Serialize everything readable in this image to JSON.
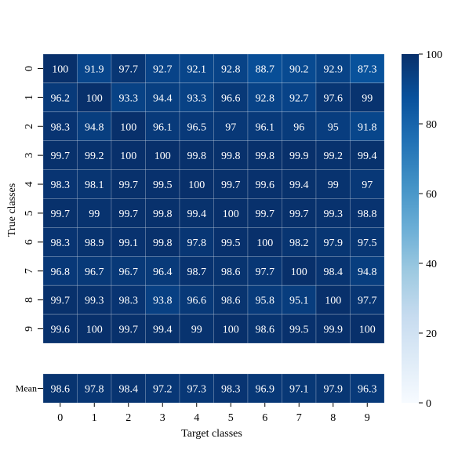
{
  "chart_data": {
    "type": "heatmap",
    "title": "",
    "xlabel": "Target classes",
    "ylabel": "True classes",
    "x_categories": [
      "0",
      "1",
      "2",
      "3",
      "4",
      "5",
      "6",
      "7",
      "8",
      "9"
    ],
    "y_categories": [
      "0",
      "1",
      "2",
      "3",
      "4",
      "5",
      "6",
      "7",
      "8",
      "9"
    ],
    "values": [
      [
        100,
        91.9,
        97.7,
        92.7,
        92.1,
        92.8,
        88.7,
        90.2,
        92.9,
        87.3
      ],
      [
        96.2,
        100,
        93.3,
        94.4,
        93.3,
        96.6,
        92.8,
        92.7,
        97.6,
        99
      ],
      [
        98.3,
        94.8,
        100,
        96.1,
        96.5,
        97,
        96.1,
        96,
        95,
        91.8
      ],
      [
        99.7,
        99.2,
        100,
        100,
        99.8,
        99.8,
        99.8,
        99.9,
        99.2,
        99.4
      ],
      [
        98.3,
        98.1,
        99.7,
        99.5,
        100,
        99.7,
        99.6,
        99.4,
        99,
        97
      ],
      [
        99.7,
        99,
        99.7,
        99.8,
        99.4,
        100,
        99.7,
        99.7,
        99.3,
        98.8
      ],
      [
        98.3,
        98.9,
        99.1,
        99.8,
        97.8,
        99.5,
        100,
        98.2,
        97.9,
        97.5
      ],
      [
        96.8,
        96.7,
        96.7,
        96.4,
        98.7,
        98.6,
        97.7,
        100,
        98.4,
        94.8
      ],
      [
        99.7,
        99.3,
        98.3,
        93.8,
        96.6,
        98.6,
        95.8,
        95.1,
        100,
        97.7
      ],
      [
        99.6,
        100,
        99.7,
        99.4,
        99,
        100,
        98.6,
        99.5,
        99.9,
        100
      ]
    ],
    "mean_label": "Mean",
    "mean_values": [
      98.6,
      97.8,
      98.4,
      97.2,
      97.3,
      98.3,
      96.9,
      97.1,
      97.9,
      96.3
    ],
    "colorbar": {
      "min": 0,
      "max": 100,
      "ticks": [
        0,
        20,
        40,
        60,
        80,
        100
      ],
      "colormap": "Blues"
    },
    "grid": true,
    "annotations": true
  }
}
